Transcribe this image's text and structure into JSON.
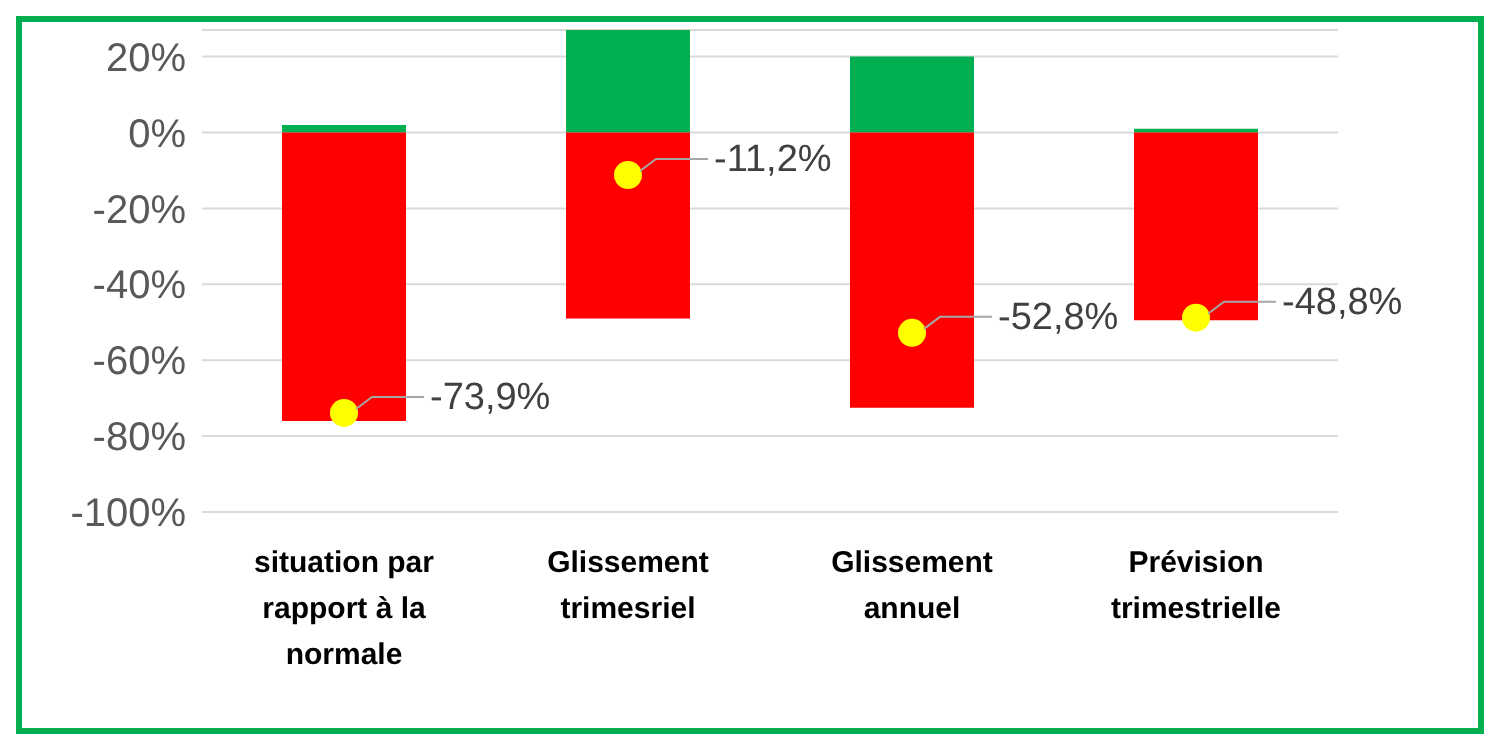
{
  "chart_data": {
    "type": "bar",
    "stacked": true,
    "categories": [
      "situation par rapport à la normale",
      "Glissement trimesriel",
      "Glissement annuel",
      "Prévision trimestrielle"
    ],
    "series": [
      {
        "color": "#00b050",
        "values": [
          2,
          27,
          20,
          1
        ]
      },
      {
        "color": "#ff0000",
        "values": [
          -76,
          -49,
          -72.5,
          -49.5
        ]
      },
      {
        "type": "scatter",
        "color": "#ffff00",
        "values": [
          -73.9,
          -11.2,
          -52.8,
          -48.8
        ],
        "value_labels": [
          "-73,9%",
          "-11,2%",
          "-52,8%",
          "-48,8%"
        ]
      }
    ],
    "ylim": [
      -100,
      27
    ],
    "yticks": [
      {
        "value": -100,
        "label": "-100%"
      },
      {
        "value": -80,
        "label": "-80%"
      },
      {
        "value": -60,
        "label": "-60%"
      },
      {
        "value": -40,
        "label": "-40%"
      },
      {
        "value": -20,
        "label": "-20%"
      },
      {
        "value": 0,
        "label": "0%"
      },
      {
        "value": 20,
        "label": "20%"
      }
    ],
    "grid": "y",
    "legend": false,
    "marker": "circle"
  }
}
